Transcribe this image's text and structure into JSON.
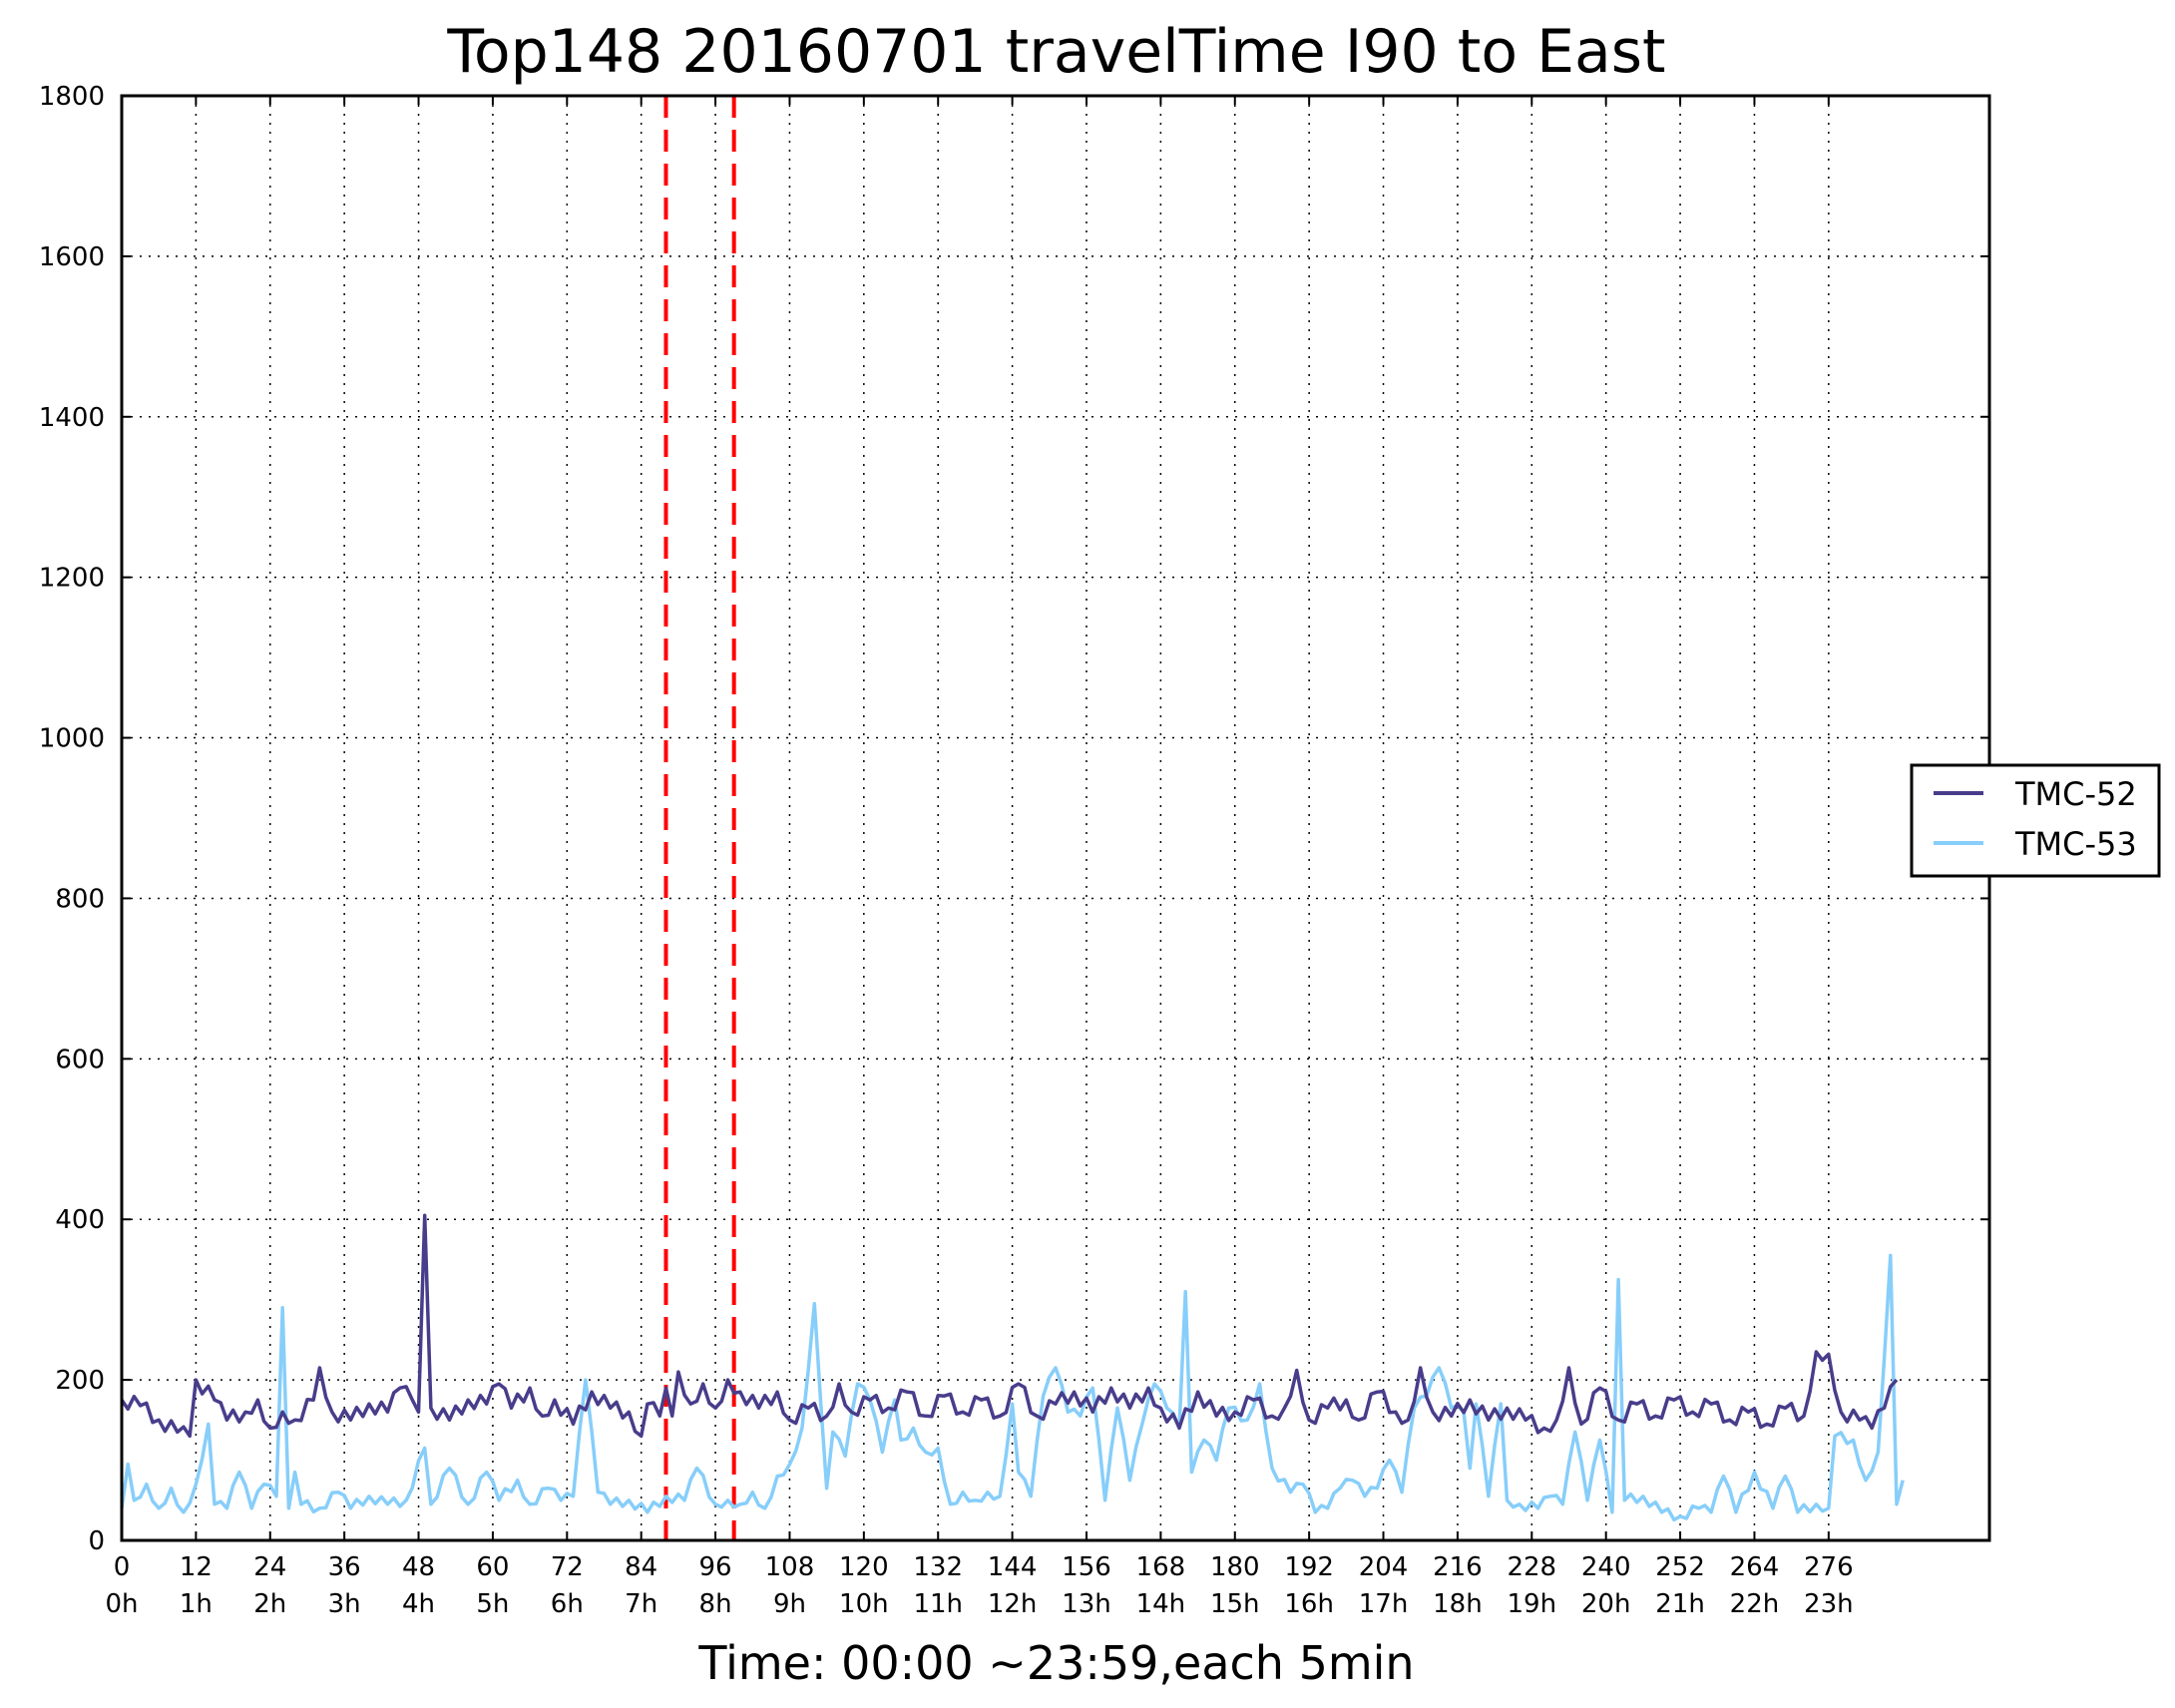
{
  "chart_data": {
    "type": "line",
    "title": "Top148 20160701 travelTime I90 to East",
    "xlabel": "Time: 00:00 ~23:59,each 5min",
    "ylabel": "",
    "xlim": [
      0,
      302
    ],
    "ylim": [
      0,
      1800
    ],
    "yticks": [
      "0",
      "200",
      "400",
      "600",
      "800",
      "1000",
      "1200",
      "1400",
      "1600",
      "1800"
    ],
    "xticks": [
      {
        "v": 0,
        "l1": "0",
        "l2": "0h"
      },
      {
        "v": 12,
        "l1": "12",
        "l2": "1h"
      },
      {
        "v": 24,
        "l1": "24",
        "l2": "2h"
      },
      {
        "v": 36,
        "l1": "36",
        "l2": "3h"
      },
      {
        "v": 48,
        "l1": "48",
        "l2": "4h"
      },
      {
        "v": 60,
        "l1": "60",
        "l2": "5h"
      },
      {
        "v": 72,
        "l1": "72",
        "l2": "6h"
      },
      {
        "v": 84,
        "l1": "84",
        "l2": "7h"
      },
      {
        "v": 96,
        "l1": "96",
        "l2": "8h"
      },
      {
        "v": 108,
        "l1": "108",
        "l2": "9h"
      },
      {
        "v": 120,
        "l1": "120",
        "l2": "10h"
      },
      {
        "v": 132,
        "l1": "132",
        "l2": "11h"
      },
      {
        "v": 144,
        "l1": "144",
        "l2": "12h"
      },
      {
        "v": 156,
        "l1": "156",
        "l2": "13h"
      },
      {
        "v": 168,
        "l1": "168",
        "l2": "14h"
      },
      {
        "v": 180,
        "l1": "180",
        "l2": "15h"
      },
      {
        "v": 192,
        "l1": "192",
        "l2": "16h"
      },
      {
        "v": 204,
        "l1": "204",
        "l2": "17h"
      },
      {
        "v": 216,
        "l1": "216",
        "l2": "18h"
      },
      {
        "v": 228,
        "l1": "228",
        "l2": "19h"
      },
      {
        "v": 240,
        "l1": "240",
        "l2": "20h"
      },
      {
        "v": 252,
        "l1": "252",
        "l2": "21h"
      },
      {
        "v": 264,
        "l1": "264",
        "l2": "22h"
      },
      {
        "v": 276,
        "l1": "276",
        "l2": "23h"
      }
    ],
    "grid": true,
    "legend_position": "right",
    "vlines": [
      {
        "x": 88,
        "color": "#ff0000"
      },
      {
        "x": 99,
        "color": "#ff0000"
      }
    ],
    "series": [
      {
        "name": "TMC-52",
        "color": "#483d8b",
        "keypoints": [
          [
            0,
            175
          ],
          [
            3,
            168
          ],
          [
            6,
            150
          ],
          [
            9,
            135
          ],
          [
            11,
            130
          ],
          [
            12,
            200
          ],
          [
            15,
            175
          ],
          [
            17,
            150
          ],
          [
            20,
            160
          ],
          [
            22,
            175
          ],
          [
            24,
            140
          ],
          [
            26,
            160
          ],
          [
            28,
            150
          ],
          [
            31,
            175
          ],
          [
            32,
            215
          ],
          [
            34,
            160
          ],
          [
            37,
            150
          ],
          [
            40,
            170
          ],
          [
            43,
            160
          ],
          [
            45,
            190
          ],
          [
            47,
            175
          ],
          [
            48,
            160
          ],
          [
            49,
            405
          ],
          [
            50,
            165
          ],
          [
            53,
            150
          ],
          [
            56,
            175
          ],
          [
            59,
            170
          ],
          [
            61,
            195
          ],
          [
            63,
            165
          ],
          [
            66,
            190
          ],
          [
            68,
            155
          ],
          [
            70,
            175
          ],
          [
            73,
            145
          ],
          [
            76,
            185
          ],
          [
            79,
            165
          ],
          [
            82,
            160
          ],
          [
            84,
            130
          ],
          [
            85,
            170
          ],
          [
            87,
            155
          ],
          [
            88,
            190
          ],
          [
            89,
            155
          ],
          [
            90,
            210
          ],
          [
            92,
            170
          ],
          [
            94,
            195
          ],
          [
            96,
            165
          ],
          [
            98,
            200
          ],
          [
            100,
            185
          ],
          [
            103,
            165
          ],
          [
            106,
            185
          ],
          [
            108,
            150
          ],
          [
            111,
            165
          ],
          [
            114,
            155
          ],
          [
            116,
            195
          ],
          [
            118,
            160
          ],
          [
            121,
            175
          ],
          [
            124,
            165
          ],
          [
            127,
            185
          ],
          [
            130,
            155
          ],
          [
            133,
            180
          ],
          [
            136,
            160
          ],
          [
            139,
            175
          ],
          [
            142,
            155
          ],
          [
            145,
            195
          ],
          [
            148,
            155
          ],
          [
            151,
            170
          ],
          [
            154,
            185
          ],
          [
            157,
            160
          ],
          [
            160,
            190
          ],
          [
            163,
            165
          ],
          [
            166,
            190
          ],
          [
            168,
            165
          ],
          [
            171,
            140
          ],
          [
            174,
            185
          ],
          [
            177,
            155
          ],
          [
            180,
            160
          ],
          [
            183,
            175
          ],
          [
            186,
            155
          ],
          [
            188,
            165
          ],
          [
            190,
            212
          ],
          [
            192,
            150
          ],
          [
            195,
            165
          ],
          [
            198,
            175
          ],
          [
            200,
            150
          ],
          [
            203,
            185
          ],
          [
            206,
            160
          ],
          [
            208,
            150
          ],
          [
            210,
            215
          ],
          [
            212,
            160
          ],
          [
            215,
            155
          ],
          [
            218,
            175
          ],
          [
            221,
            150
          ],
          [
            224,
            165
          ],
          [
            227,
            150
          ],
          [
            230,
            140
          ],
          [
            232,
            150
          ],
          [
            234,
            215
          ],
          [
            236,
            145
          ],
          [
            239,
            190
          ],
          [
            242,
            150
          ],
          [
            245,
            170
          ],
          [
            248,
            155
          ],
          [
            251,
            175
          ],
          [
            254,
            160
          ],
          [
            257,
            170
          ],
          [
            260,
            150
          ],
          [
            263,
            160
          ],
          [
            266,
            145
          ],
          [
            269,
            165
          ],
          [
            272,
            155
          ],
          [
            274,
            235
          ],
          [
            276,
            232
          ],
          [
            278,
            160
          ],
          [
            281,
            150
          ],
          [
            283,
            140
          ],
          [
            285,
            165
          ],
          [
            287,
            200
          ]
        ]
      },
      {
        "name": "TMC-53",
        "color": "#87cefa",
        "keypoints": [
          [
            0,
            40
          ],
          [
            1,
            95
          ],
          [
            2,
            50
          ],
          [
            4,
            70
          ],
          [
            6,
            40
          ],
          [
            8,
            65
          ],
          [
            10,
            35
          ],
          [
            12,
            70
          ],
          [
            14,
            145
          ],
          [
            15,
            45
          ],
          [
            17,
            40
          ],
          [
            19,
            85
          ],
          [
            21,
            40
          ],
          [
            23,
            70
          ],
          [
            25,
            55
          ],
          [
            26,
            290
          ],
          [
            27,
            40
          ],
          [
            28,
            85
          ],
          [
            29,
            45
          ],
          [
            32,
            40
          ],
          [
            35,
            60
          ],
          [
            37,
            40
          ],
          [
            40,
            55
          ],
          [
            43,
            45
          ],
          [
            46,
            50
          ],
          [
            49,
            115
          ],
          [
            50,
            45
          ],
          [
            53,
            90
          ],
          [
            56,
            45
          ],
          [
            59,
            85
          ],
          [
            61,
            50
          ],
          [
            64,
            75
          ],
          [
            66,
            45
          ],
          [
            69,
            65
          ],
          [
            71,
            50
          ],
          [
            73,
            55
          ],
          [
            75,
            200
          ],
          [
            77,
            60
          ],
          [
            79,
            45
          ],
          [
            82,
            50
          ],
          [
            85,
            35
          ],
          [
            88,
            55
          ],
          [
            91,
            50
          ],
          [
            93,
            90
          ],
          [
            96,
            45
          ],
          [
            98,
            50
          ],
          [
            100,
            45
          ],
          [
            102,
            60
          ],
          [
            104,
            40
          ],
          [
            106,
            80
          ],
          [
            108,
            95
          ],
          [
            110,
            140
          ],
          [
            112,
            295
          ],
          [
            114,
            65
          ],
          [
            115,
            135
          ],
          [
            117,
            105
          ],
          [
            119,
            195
          ],
          [
            121,
            175
          ],
          [
            123,
            110
          ],
          [
            125,
            175
          ],
          [
            126,
            125
          ],
          [
            128,
            140
          ],
          [
            130,
            110
          ],
          [
            132,
            115
          ],
          [
            134,
            45
          ],
          [
            136,
            60
          ],
          [
            138,
            50
          ],
          [
            140,
            60
          ],
          [
            142,
            55
          ],
          [
            144,
            170
          ],
          [
            145,
            85
          ],
          [
            147,
            55
          ],
          [
            149,
            180
          ],
          [
            151,
            215
          ],
          [
            153,
            160
          ],
          [
            155,
            155
          ],
          [
            157,
            190
          ],
          [
            159,
            50
          ],
          [
            161,
            165
          ],
          [
            163,
            75
          ],
          [
            165,
            145
          ],
          [
            167,
            195
          ],
          [
            169,
            165
          ],
          [
            171,
            140
          ],
          [
            172,
            310
          ],
          [
            173,
            85
          ],
          [
            175,
            125
          ],
          [
            177,
            100
          ],
          [
            179,
            165
          ],
          [
            182,
            150
          ],
          [
            184,
            195
          ],
          [
            186,
            90
          ],
          [
            189,
            60
          ],
          [
            191,
            70
          ],
          [
            193,
            35
          ],
          [
            195,
            40
          ],
          [
            197,
            65
          ],
          [
            199,
            75
          ],
          [
            201,
            55
          ],
          [
            203,
            65
          ],
          [
            205,
            100
          ],
          [
            207,
            60
          ],
          [
            209,
            165
          ],
          [
            211,
            180
          ],
          [
            213,
            215
          ],
          [
            215,
            165
          ],
          [
            217,
            160
          ],
          [
            218,
            90
          ],
          [
            219,
            170
          ],
          [
            221,
            55
          ],
          [
            223,
            170
          ],
          [
            224,
            50
          ],
          [
            226,
            45
          ],
          [
            229,
            40
          ],
          [
            231,
            55
          ],
          [
            233,
            45
          ],
          [
            235,
            135
          ],
          [
            237,
            50
          ],
          [
            239,
            125
          ],
          [
            241,
            35
          ],
          [
            242,
            325
          ],
          [
            243,
            50
          ],
          [
            246,
            55
          ],
          [
            249,
            35
          ],
          [
            252,
            30
          ],
          [
            255,
            40
          ],
          [
            257,
            35
          ],
          [
            259,
            80
          ],
          [
            261,
            35
          ],
          [
            264,
            85
          ],
          [
            267,
            40
          ],
          [
            269,
            80
          ],
          [
            271,
            35
          ],
          [
            274,
            45
          ],
          [
            276,
            40
          ],
          [
            277,
            130
          ],
          [
            280,
            125
          ],
          [
            282,
            75
          ],
          [
            284,
            110
          ],
          [
            286,
            355
          ],
          [
            287,
            45
          ],
          [
            288,
            75
          ]
        ]
      }
    ]
  }
}
